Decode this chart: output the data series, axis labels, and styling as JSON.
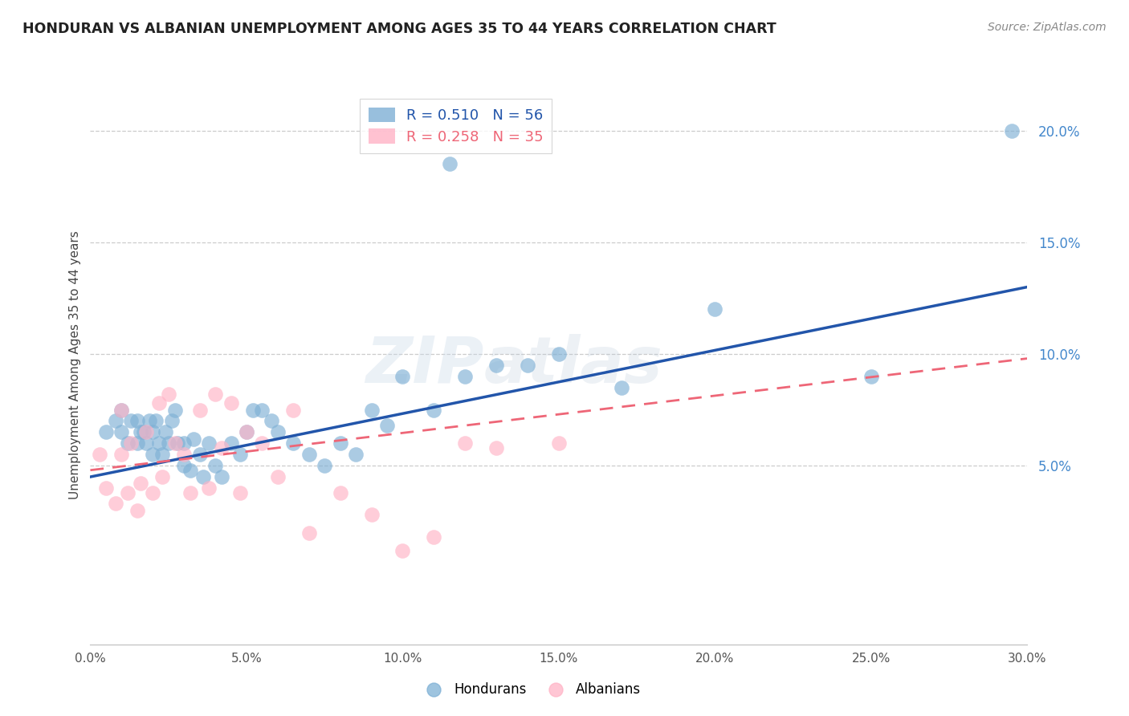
{
  "title": "HONDURAN VS ALBANIAN UNEMPLOYMENT AMONG AGES 35 TO 44 YEARS CORRELATION CHART",
  "source": "Source: ZipAtlas.com",
  "ylabel": "Unemployment Among Ages 35 to 44 years",
  "xlim": [
    0.0,
    0.3
  ],
  "ylim": [
    -0.03,
    0.22
  ],
  "ytick_positions": [
    0.05,
    0.1,
    0.15,
    0.2
  ],
  "ytick_labels": [
    "5.0%",
    "10.0%",
    "15.0%",
    "20.0%"
  ],
  "xtick_positions": [
    0.0,
    0.05,
    0.1,
    0.15,
    0.2,
    0.25,
    0.3
  ],
  "xtick_labels": [
    "0.0%",
    "5.0%",
    "10.0%",
    "15.0%",
    "20.0%",
    "25.0%",
    "30.0%"
  ],
  "honduran_color": "#7EB0D5",
  "albanian_color": "#FFB3C6",
  "honduran_line_color": "#2255AA",
  "albanian_line_color": "#EE6677",
  "honduran_R": 0.51,
  "honduran_N": 56,
  "albanian_R": 0.258,
  "albanian_N": 35,
  "watermark_zip": "ZIP",
  "watermark_atlas": "atlas",
  "legend_hondurans": "Hondurans",
  "legend_albanians": "Albanians",
  "honduran_scatter_x": [
    0.005,
    0.008,
    0.01,
    0.01,
    0.012,
    0.013,
    0.015,
    0.015,
    0.016,
    0.017,
    0.018,
    0.019,
    0.02,
    0.02,
    0.021,
    0.022,
    0.023,
    0.024,
    0.025,
    0.026,
    0.027,
    0.028,
    0.03,
    0.03,
    0.032,
    0.033,
    0.035,
    0.036,
    0.038,
    0.04,
    0.042,
    0.045,
    0.048,
    0.05,
    0.052,
    0.055,
    0.058,
    0.06,
    0.065,
    0.07,
    0.075,
    0.08,
    0.085,
    0.09,
    0.095,
    0.1,
    0.11,
    0.115,
    0.12,
    0.13,
    0.14,
    0.15,
    0.17,
    0.2,
    0.25,
    0.295
  ],
  "honduran_scatter_y": [
    0.065,
    0.07,
    0.065,
    0.075,
    0.06,
    0.07,
    0.06,
    0.07,
    0.065,
    0.065,
    0.06,
    0.07,
    0.055,
    0.065,
    0.07,
    0.06,
    0.055,
    0.065,
    0.06,
    0.07,
    0.075,
    0.06,
    0.05,
    0.06,
    0.048,
    0.062,
    0.055,
    0.045,
    0.06,
    0.05,
    0.045,
    0.06,
    0.055,
    0.065,
    0.075,
    0.075,
    0.07,
    0.065,
    0.06,
    0.055,
    0.05,
    0.06,
    0.055,
    0.075,
    0.068,
    0.09,
    0.075,
    0.185,
    0.09,
    0.095,
    0.095,
    0.1,
    0.085,
    0.12,
    0.09,
    0.2
  ],
  "albanian_scatter_x": [
    0.003,
    0.005,
    0.008,
    0.01,
    0.01,
    0.012,
    0.013,
    0.015,
    0.016,
    0.018,
    0.02,
    0.022,
    0.023,
    0.025,
    0.027,
    0.03,
    0.032,
    0.035,
    0.038,
    0.04,
    0.042,
    0.045,
    0.048,
    0.05,
    0.055,
    0.06,
    0.065,
    0.07,
    0.08,
    0.09,
    0.1,
    0.11,
    0.12,
    0.13,
    0.15
  ],
  "albanian_scatter_y": [
    0.055,
    0.04,
    0.033,
    0.055,
    0.075,
    0.038,
    0.06,
    0.03,
    0.042,
    0.065,
    0.038,
    0.078,
    0.045,
    0.082,
    0.06,
    0.055,
    0.038,
    0.075,
    0.04,
    0.082,
    0.058,
    0.078,
    0.038,
    0.065,
    0.06,
    0.045,
    0.075,
    0.02,
    0.038,
    0.028,
    0.012,
    0.018,
    0.06,
    0.058,
    0.06
  ],
  "honduran_line_x0": 0.0,
  "honduran_line_y0": 0.045,
  "honduran_line_x1": 0.3,
  "honduran_line_y1": 0.13,
  "albanian_line_x0": 0.0,
  "albanian_line_y0": 0.048,
  "albanian_line_x1": 0.3,
  "albanian_line_y1": 0.098
}
